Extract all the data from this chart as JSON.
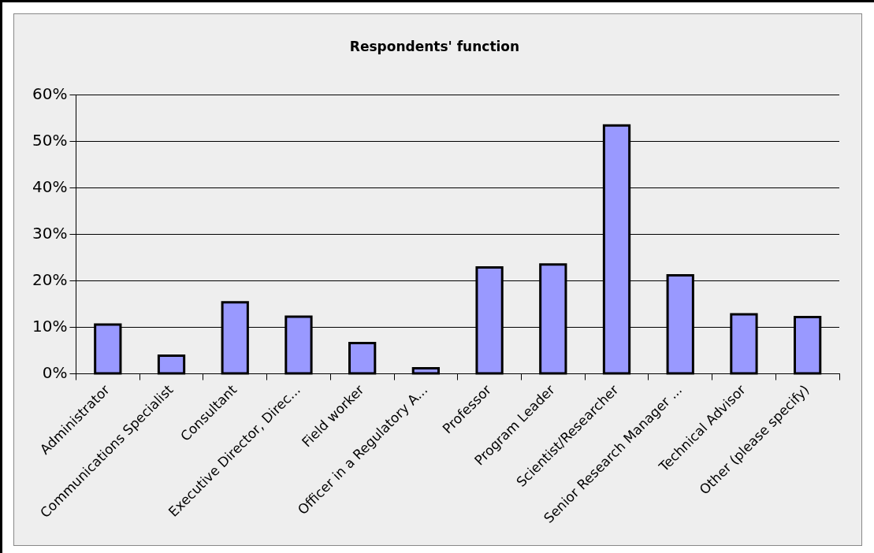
{
  "chart_data": {
    "type": "bar",
    "title": "Respondents' function",
    "categories": [
      "Administrator",
      "Communications Specialist",
      "Consultant",
      "Executive Director, Direc...",
      "Field worker",
      "Officer in a Regulatory A...",
      "Professor",
      "Program Leader",
      "Scientist/Researcher",
      "Senior Research Manager ...",
      "Technical Advisor",
      "Other (please specify)"
    ],
    "values": [
      10.6,
      3.9,
      15.4,
      12.3,
      6.6,
      1.2,
      22.9,
      23.5,
      53.4,
      21.2,
      12.8,
      12.2
    ],
    "color": "#9999ff",
    "ylim": [
      0,
      60
    ],
    "yticks": [
      {
        "value": 0,
        "label": "0%"
      },
      {
        "value": 10,
        "label": "10%"
      },
      {
        "value": 20,
        "label": "20%"
      },
      {
        "value": 30,
        "label": "30%"
      },
      {
        "value": 40,
        "label": "40%"
      },
      {
        "value": 50,
        "label": "50%"
      },
      {
        "value": 60,
        "label": "60%"
      }
    ],
    "grid": "y",
    "legend": false
  }
}
